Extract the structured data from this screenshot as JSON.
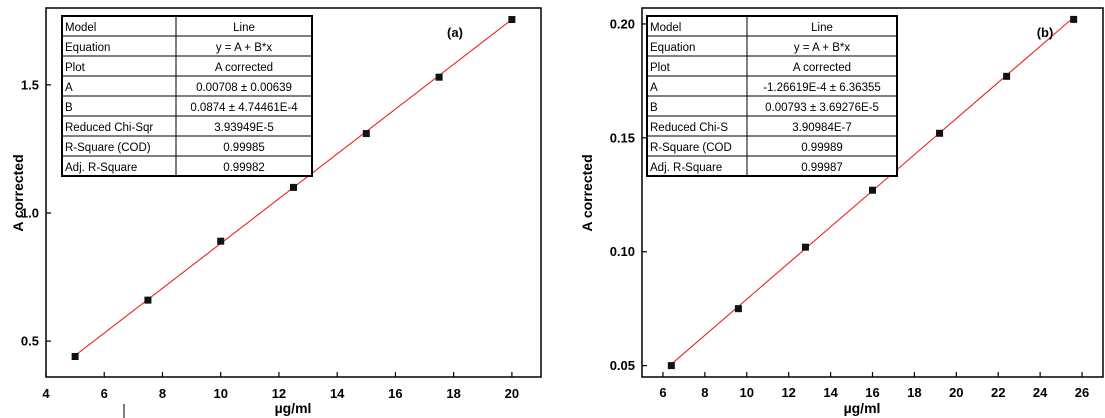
{
  "chart_data": [
    {
      "type": "scatter",
      "panel_label": "(a)",
      "xlabel": "µg/ml",
      "ylabel": "A corrected",
      "xlim": [
        4,
        21
      ],
      "ylim": [
        0.36,
        1.8
      ],
      "xticks": [
        "4",
        "6",
        "8",
        "10",
        "12",
        "14",
        "16",
        "18",
        "20"
      ],
      "yticks": [
        "0.5",
        "1.0",
        "1.5"
      ],
      "series": [
        {
          "x": [
            5,
            7.5,
            10,
            12.5,
            15,
            17.5,
            20
          ],
          "y": [
            0.44,
            0.66,
            0.89,
            1.1,
            1.31,
            1.53,
            1.755
          ]
        }
      ],
      "fit": {
        "intercept": 0.00708,
        "slope": 0.0874,
        "color": "#e8231f"
      },
      "marker_color": "#111111",
      "table": [
        [
          "Model",
          "Line"
        ],
        [
          "Equation",
          "y = A + B*x"
        ],
        [
          "Plot",
          "A corrected"
        ],
        [
          "A",
          "0.00708 ± 0.00639"
        ],
        [
          "B",
          "0.0874 ± 4.74461E-4"
        ],
        [
          "Reduced Chi-Sqr",
          "3.93949E-5"
        ],
        [
          "R-Square (COD)",
          "0.99985"
        ],
        [
          "Adj. R-Square",
          "0.99982"
        ]
      ]
    },
    {
      "type": "scatter",
      "panel_label": "(b)",
      "xlabel": "µg/ml",
      "ylabel": "A corrected",
      "xlim": [
        5,
        27
      ],
      "ylim": [
        0.045,
        0.207
      ],
      "xticks": [
        "6",
        "8",
        "10",
        "12",
        "14",
        "16",
        "18",
        "20",
        "22",
        "24",
        "26"
      ],
      "yticks": [
        "0.05",
        "0.10",
        "0.15",
        "0.20"
      ],
      "series": [
        {
          "x": [
            6.4,
            9.6,
            12.8,
            16,
            19.2,
            22.4,
            25.6
          ],
          "y": [
            0.05,
            0.075,
            0.102,
            0.127,
            0.152,
            0.177,
            0.202
          ]
        }
      ],
      "fit": {
        "intercept": -0.000126619,
        "slope": 0.00793,
        "color": "#e8231f"
      },
      "marker_color": "#111111",
      "table": [
        [
          "Model",
          "Line"
        ],
        [
          "Equation",
          "y = A + B*x"
        ],
        [
          "Plot",
          "A corrected"
        ],
        [
          "A",
          "-1.26619E-4 ± 6.36355"
        ],
        [
          "B",
          "0.00793 ± 3.69276E-5"
        ],
        [
          "Reduced Chi-S",
          "3.90984E-7"
        ],
        [
          "R-Square (COD",
          "0.99989"
        ],
        [
          "Adj. R-Square",
          "0.99987"
        ]
      ]
    }
  ]
}
